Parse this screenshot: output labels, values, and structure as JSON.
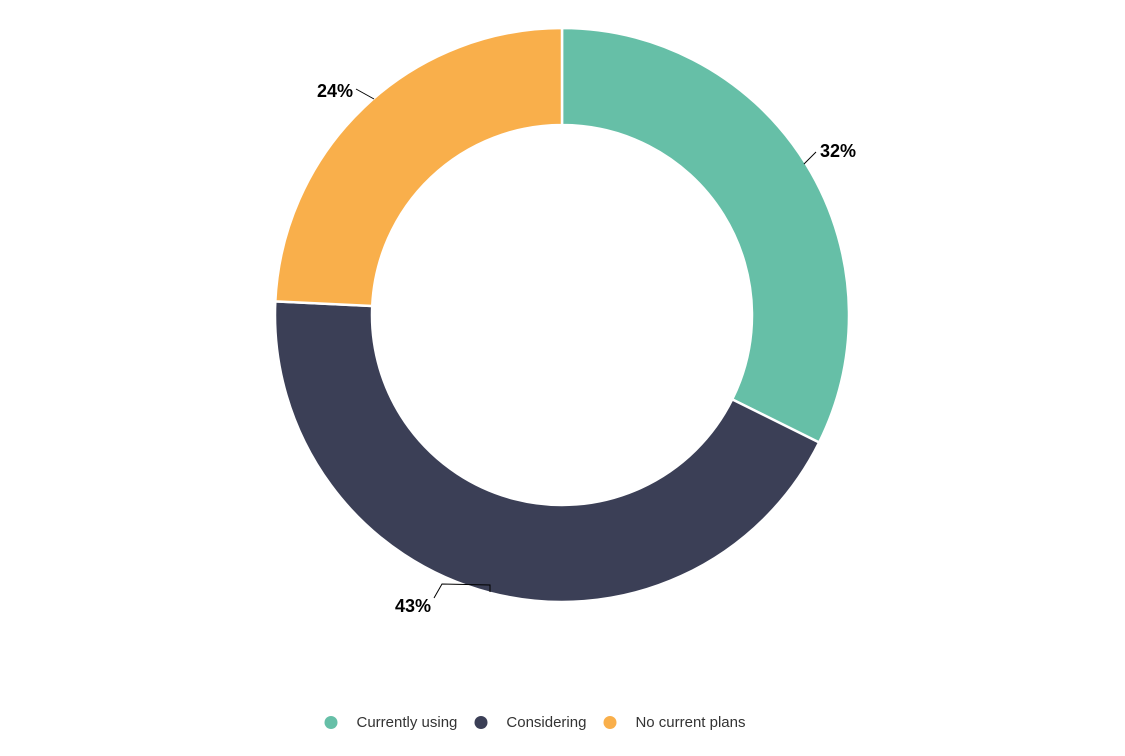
{
  "chart_data": {
    "type": "pie",
    "subtype": "donut",
    "title": "",
    "categories": [
      "Currently using",
      "Considering",
      "No current plans"
    ],
    "values": [
      32,
      43,
      24
    ],
    "data_labels": [
      "32%",
      "43%",
      "24%"
    ],
    "colors": [
      "#66BFA7",
      "#3B3F56",
      "#F9AF4B"
    ],
    "legend_position": "bottom",
    "start_angle_deg": 0,
    "direction": "clockwise",
    "inner_radius_ratio": 0.66,
    "background_color": "#ffffff",
    "label_color": "#000000",
    "legend_text_color": "#333333",
    "slice_border_color": "#ffffff"
  }
}
